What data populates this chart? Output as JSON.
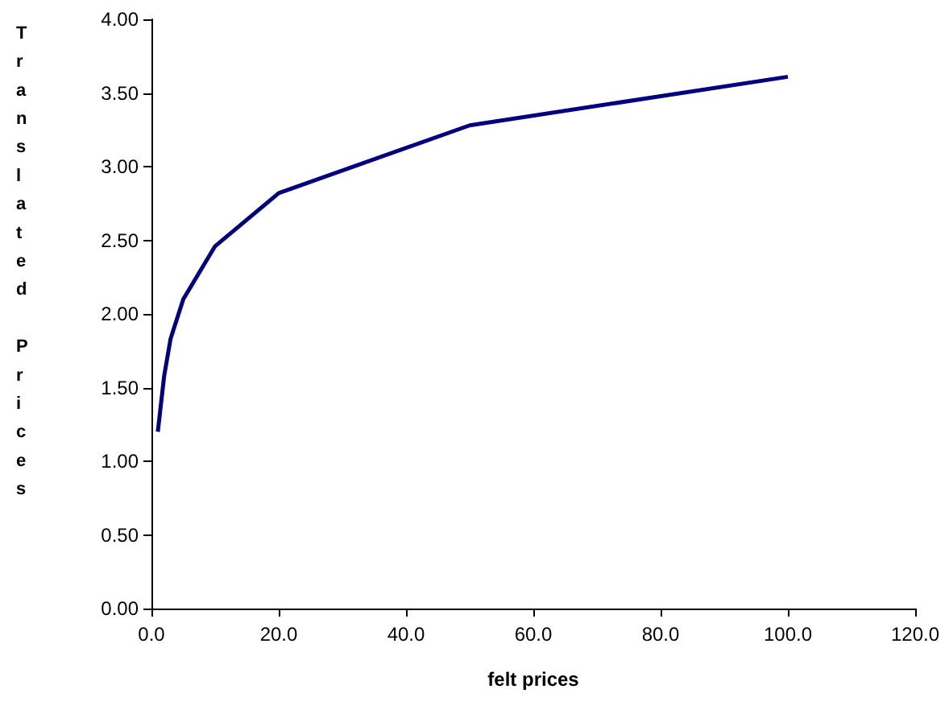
{
  "chart_data": {
    "type": "line",
    "xlabel": "felt prices",
    "ylabel": "Translated Prices",
    "x": [
      1,
      2,
      3,
      5,
      10,
      20,
      50,
      100
    ],
    "series": [
      {
        "color": "#000080",
        "values": [
          1.2,
          1.58,
          1.83,
          2.1,
          2.46,
          2.82,
          3.28,
          3.61
        ]
      }
    ],
    "xlim": [
      0,
      120
    ],
    "xticks": [
      {
        "value": 0,
        "label": "0.0"
      },
      {
        "value": 20,
        "label": "20.0"
      },
      {
        "value": 40,
        "label": "40.0"
      },
      {
        "value": 60,
        "label": "60.0"
      },
      {
        "value": 80,
        "label": "80.0"
      },
      {
        "value": 100,
        "label": "100.0"
      },
      {
        "value": 120,
        "label": "120.0"
      }
    ],
    "ylim": [
      0,
      4
    ],
    "yticks": [
      {
        "value": 0,
        "label": "0.00"
      },
      {
        "value": 0.5,
        "label": "0.50"
      },
      {
        "value": 1,
        "label": "1.00"
      },
      {
        "value": 1.5,
        "label": "1.50"
      },
      {
        "value": 2,
        "label": "2.00"
      },
      {
        "value": 2.5,
        "label": "2.50"
      },
      {
        "value": 3,
        "label": "3.00"
      },
      {
        "value": 3.5,
        "label": "3.50"
      },
      {
        "value": 4,
        "label": "4.00"
      }
    ],
    "grid": false,
    "marker": "none",
    "line_style": "solid"
  }
}
